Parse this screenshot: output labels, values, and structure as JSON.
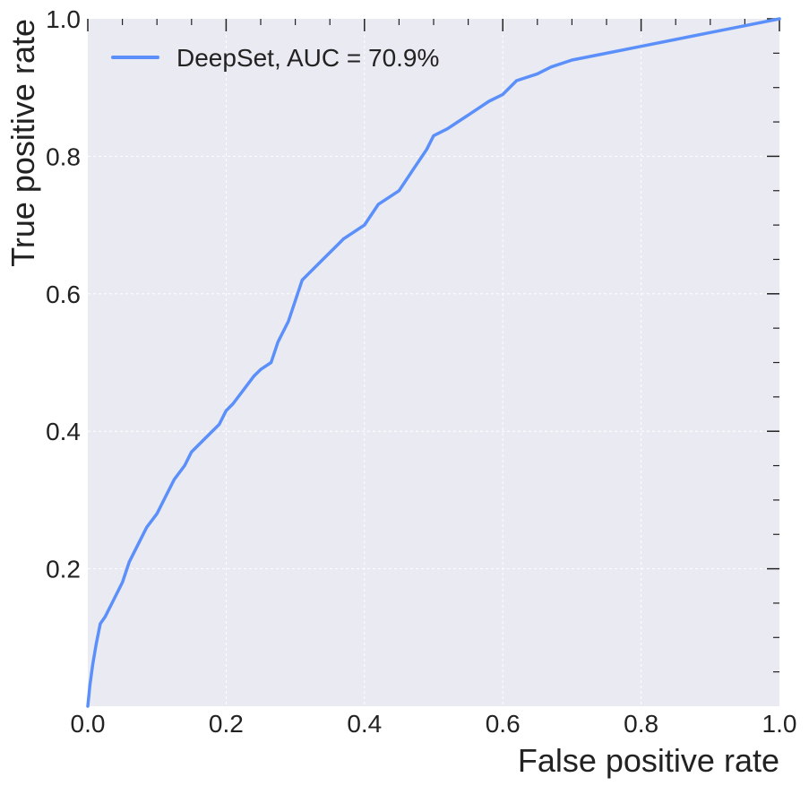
{
  "chart_data": {
    "type": "line",
    "title": "",
    "xlabel": "False positive rate",
    "ylabel": "True positive rate",
    "xlim": [
      0.0,
      1.0
    ],
    "ylim": [
      0.0,
      1.0
    ],
    "grid": true,
    "legend_position": "top-left",
    "x_ticks": [
      "0.0",
      "0.2",
      "0.4",
      "0.6",
      "0.8",
      "1.0"
    ],
    "y_ticks": [
      "0.2",
      "0.4",
      "0.6",
      "0.8",
      "1.0"
    ],
    "colors": {
      "background": "#EAEAF2",
      "grid": "#FFFFFF",
      "series": "#5B8FF9"
    },
    "series": [
      {
        "name": "DeepSet, AUC = 70.9%",
        "x": [
          0.0,
          0.003,
          0.007,
          0.012,
          0.018,
          0.025,
          0.035,
          0.05,
          0.06,
          0.075,
          0.085,
          0.1,
          0.11,
          0.125,
          0.14,
          0.15,
          0.17,
          0.19,
          0.2,
          0.21,
          0.225,
          0.24,
          0.25,
          0.265,
          0.275,
          0.29,
          0.3,
          0.31,
          0.32,
          0.34,
          0.36,
          0.37,
          0.4,
          0.42,
          0.45,
          0.47,
          0.49,
          0.5,
          0.52,
          0.55,
          0.58,
          0.6,
          0.62,
          0.65,
          0.67,
          0.7,
          0.75,
          0.8,
          0.85,
          0.9,
          0.95,
          1.0
        ],
        "y": [
          0.0,
          0.03,
          0.06,
          0.09,
          0.12,
          0.13,
          0.15,
          0.18,
          0.21,
          0.24,
          0.26,
          0.28,
          0.3,
          0.33,
          0.35,
          0.37,
          0.39,
          0.41,
          0.43,
          0.44,
          0.46,
          0.48,
          0.49,
          0.5,
          0.53,
          0.56,
          0.59,
          0.62,
          0.63,
          0.65,
          0.67,
          0.68,
          0.7,
          0.73,
          0.75,
          0.78,
          0.81,
          0.83,
          0.84,
          0.86,
          0.88,
          0.89,
          0.91,
          0.92,
          0.93,
          0.94,
          0.95,
          0.96,
          0.97,
          0.98,
          0.99,
          1.0
        ]
      }
    ]
  }
}
